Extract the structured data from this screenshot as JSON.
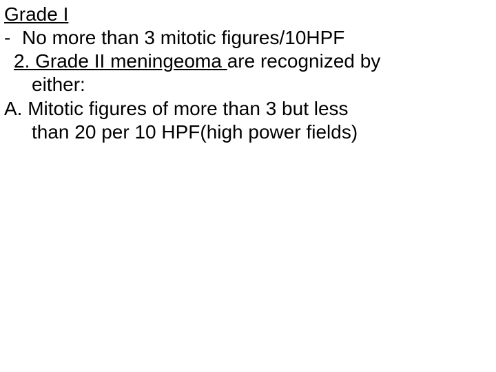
{
  "slide": {
    "background_color": "#ffffff",
    "text_color": "#000000",
    "font_family": "Arial",
    "font_size_pt": 28,
    "line1_underlined": "Grade I",
    "line2_dash": "-",
    "line2_text": "No more than 3 mitotic figures/10HPF",
    "line3_prefix_underlined": "2. Grade II meningeoma ",
    "line3_rest": "are recognized by",
    "line4_text": "either:",
    "line5_text": "A. Mitotic figures of more than 3 but less",
    "line6_text": "than 20 per 10 HPF(high power fields)"
  }
}
